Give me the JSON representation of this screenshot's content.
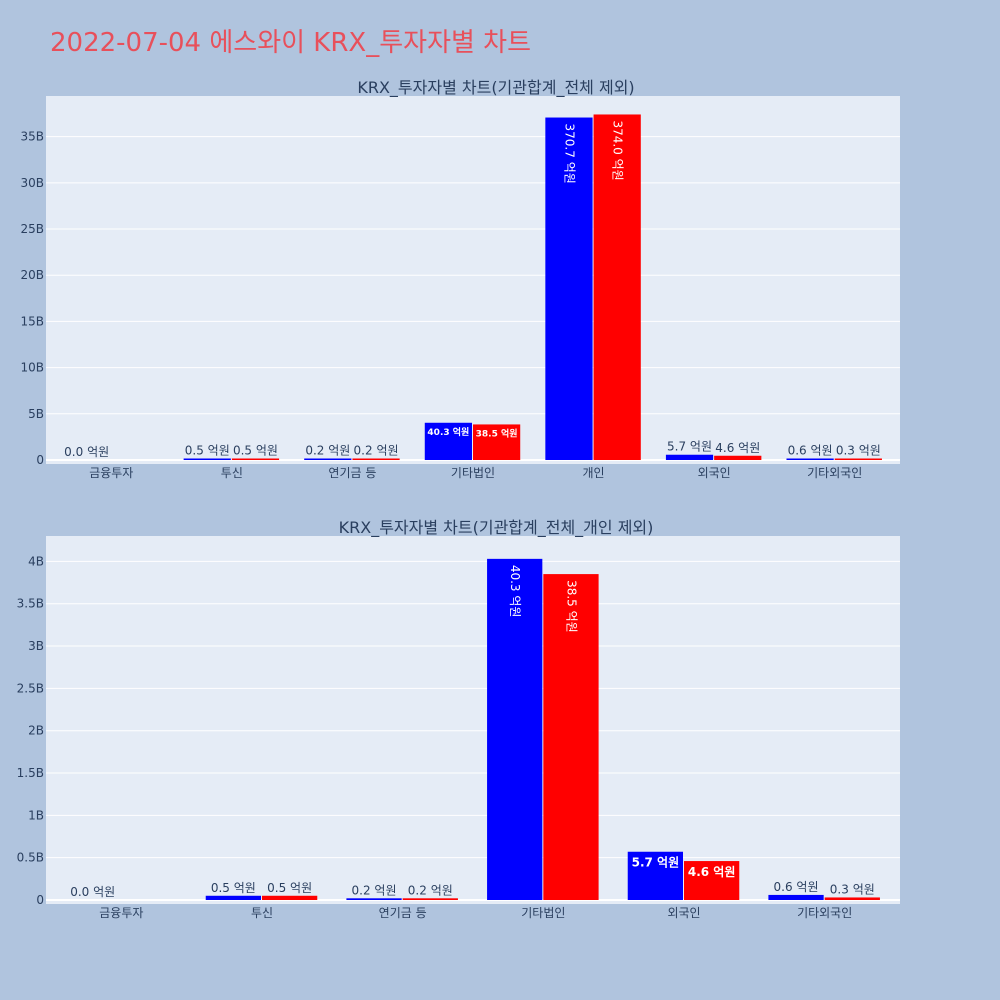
{
  "page": {
    "title": "2022-07-04 에스와이 KRX_투자자별 차트"
  },
  "colors": {
    "background": "#b0c4de",
    "plot_bg": "#e5ecf6",
    "title": "#e8505b",
    "series1": "#0000ff",
    "series2": "#ff0000"
  },
  "chart_data": [
    {
      "type": "bar",
      "title": "KRX_투자자별 차트(기관합계_전체 제외)",
      "categories": [
        "금융투자",
        "투신",
        "연기금 등",
        "기타법인",
        "개인",
        "외국인",
        "기타외국인"
      ],
      "ylim": [
        0,
        39400000000
      ],
      "yticks": [
        0,
        5000000000,
        10000000000,
        15000000000,
        20000000000,
        25000000000,
        30000000000,
        35000000000
      ],
      "ytick_labels": [
        "0",
        "5B",
        "10B",
        "15B",
        "20B",
        "25B",
        "30B",
        "35B"
      ],
      "grid": true,
      "series": [
        {
          "values": [
            0,
            50000000,
            20000000,
            4030000000,
            37070000000,
            570000000,
            60000000
          ],
          "labels": [
            "0.0 억원",
            "0.5 억원",
            "0.2 억원",
            "40.3 억원",
            "370.7 억원",
            "5.7 억원",
            "0.6 억원"
          ]
        },
        {
          "values": [
            0,
            50000000,
            20000000,
            3850000000,
            37400000000,
            460000000,
            30000000
          ],
          "labels": [
            "",
            "0.5 억원",
            "0.2 억원",
            "38.5 억원",
            "374.0 억원",
            "4.6 억원",
            "0.3 억원"
          ]
        }
      ]
    },
    {
      "type": "bar",
      "title": "KRX_투자자별 차트(기관합계_전체_개인 제외)",
      "categories": [
        "금융투자",
        "투신",
        "연기금 등",
        "기타법인",
        "외국인",
        "기타외국인"
      ],
      "ylim": [
        0,
        4300000000
      ],
      "yticks": [
        0,
        500000000,
        1000000000,
        1500000000,
        2000000000,
        2500000000,
        3000000000,
        3500000000,
        4000000000
      ],
      "ytick_labels": [
        "0",
        "0.5B",
        "1B",
        "1.5B",
        "2B",
        "2.5B",
        "3B",
        "3.5B",
        "4B"
      ],
      "grid": true,
      "series": [
        {
          "values": [
            0,
            50000000,
            20000000,
            4030000000,
            570000000,
            60000000
          ],
          "labels": [
            "0.0 억원",
            "0.5 억원",
            "0.2 억원",
            "40.3 억원",
            "5.7 억원",
            "0.6 억원"
          ]
        },
        {
          "values": [
            0,
            50000000,
            20000000,
            3850000000,
            460000000,
            30000000
          ],
          "labels": [
            "",
            "0.5 억원",
            "0.2 억원",
            "38.5 억원",
            "4.6 억원",
            "0.3 억원"
          ]
        }
      ]
    }
  ]
}
